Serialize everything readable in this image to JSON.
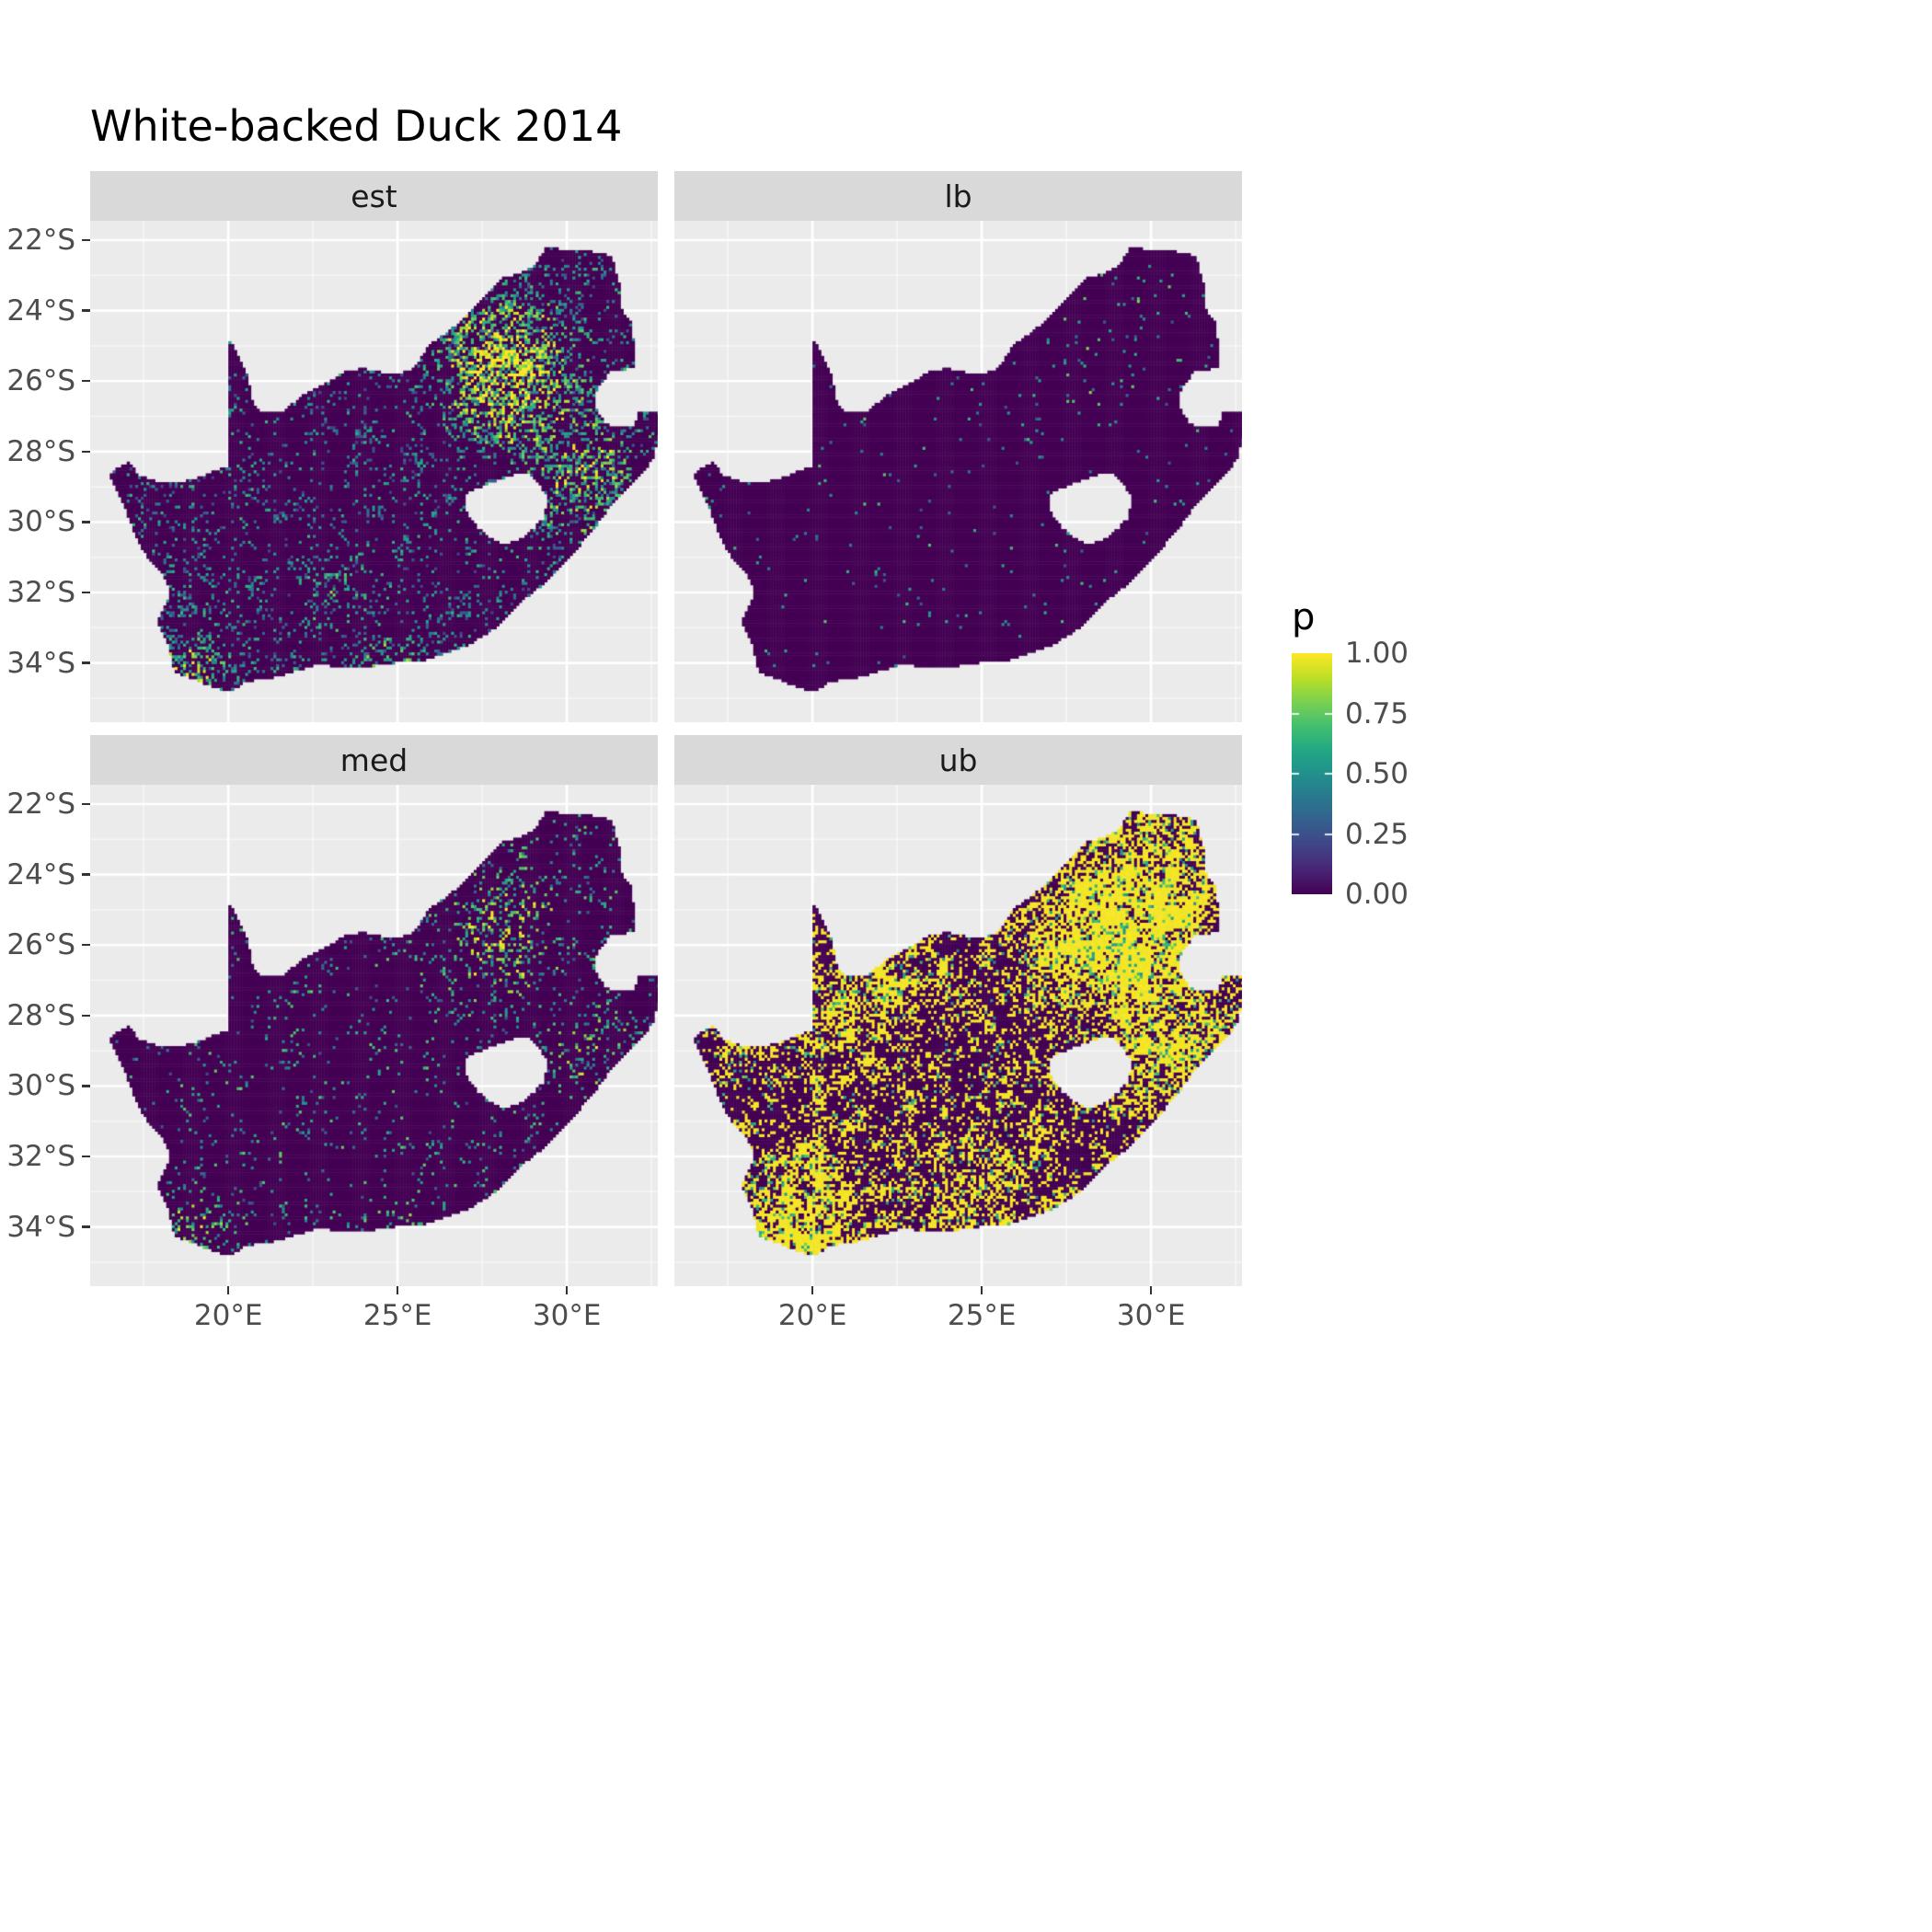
{
  "title": "White-backed Duck 2014",
  "legend": {
    "title": "p",
    "ticks": [
      {
        "label": "1.00",
        "value": 1.0
      },
      {
        "label": "0.75",
        "value": 0.75
      },
      {
        "label": "0.50",
        "value": 0.5
      },
      {
        "label": "0.25",
        "value": 0.25
      },
      {
        "label": "0.00",
        "value": 0.0
      }
    ]
  },
  "axes": {
    "x_ticks": [
      {
        "label": "20°E",
        "lon": 20
      },
      {
        "label": "25°E",
        "lon": 25
      },
      {
        "label": "30°E",
        "lon": 30
      }
    ],
    "y_ticks": [
      {
        "label": "22°S",
        "lat": -22
      },
      {
        "label": "24°S",
        "lat": -24
      },
      {
        "label": "26°S",
        "lat": -26
      },
      {
        "label": "28°S",
        "lat": -28
      },
      {
        "label": "30°S",
        "lat": -30
      },
      {
        "label": "32°S",
        "lat": -32
      },
      {
        "label": "34°S",
        "lat": -34
      }
    ]
  },
  "chart_data": {
    "type": "heatmap",
    "subtype": "faceted raster occupancy-probability maps of South Africa on a fine (pentad) grid",
    "title": "White-backed Duck 2014",
    "region": "South Africa (Lesotho shown as hole, Eswatini as coastal notch)",
    "scale": {
      "name": "p",
      "min": 0.0,
      "max": 1.0,
      "breaks": [
        0.0,
        0.25,
        0.5,
        0.75,
        1.0
      ]
    },
    "colormap": {
      "name": "viridis",
      "stops": [
        "#440154",
        "#482475",
        "#414487",
        "#355f8d",
        "#2a788e",
        "#21918c",
        "#22a884",
        "#44bf70",
        "#7ad151",
        "#bddf26",
        "#fde725"
      ]
    },
    "facets": [
      {
        "label": "est",
        "summary": "Estimate: mostly near 0 (dark purple) with widespread scattered low-mid cells; strong high-probability cluster around Gauteng (~26°S, 28°E), and smaller clusters near the southwest Cape coast, south coast and east coast.",
        "gen": {
          "seed": 11,
          "base": 0.03,
          "clumpAmp": 0.28,
          "clumpPow": 2,
          "hotOcc": 0.6,
          "valLo": 0.18,
          "valSpan": 0.5,
          "hotBoost": 0.95,
          "sprinkle": 0,
          "hotspots": [
            [
              28.0,
              -26.1,
              1.1,
              0.85
            ],
            [
              28.6,
              -24.6,
              1.0,
              0.4
            ],
            [
              30.3,
              -29.3,
              0.9,
              0.4
            ],
            [
              18.9,
              -34.2,
              0.8,
              0.6
            ],
            [
              24.9,
              -34.1,
              0.6,
              0.5
            ],
            [
              23.3,
              -32.3,
              0.8,
              0.22
            ],
            [
              29.9,
              -26.9,
              1.2,
              0.3
            ],
            [
              31.2,
              -28.3,
              0.8,
              0.3
            ],
            [
              26.8,
              -24.8,
              0.9,
              0.25
            ]
          ]
        }
      },
      {
        "label": "lb",
        "summary": "Lower bound: nearly all cells at 0; only a few isolated low/mid cells, mainly toward Gauteng and the northeast.",
        "gen": {
          "seed": 22,
          "base": 0.006,
          "clumpAmp": 0.025,
          "clumpPow": 2,
          "hotOcc": 0.12,
          "valLo": 0.25,
          "valSpan": 0.5,
          "hotBoost": 0.5,
          "sprinkle": 0,
          "hotspots": [
            [
              28.0,
              -26.1,
              0.9,
              0.5
            ],
            [
              29.8,
              -23.8,
              0.5,
              0.25
            ],
            [
              18.9,
              -34.3,
              0.4,
              0.25
            ],
            [
              30.3,
              -29.3,
              0.4,
              0.2
            ]
          ]
        }
      },
      {
        "label": "med",
        "summary": "Median: mostly 0 with moderate scattered cells; clusters around Gauteng (~26°S, 28°E) and near the southwest Cape and south coast.",
        "gen": {
          "seed": 33,
          "base": 0.018,
          "clumpAmp": 0.11,
          "clumpPow": 2,
          "hotOcc": 0.4,
          "valLo": 0.22,
          "valSpan": 0.55,
          "hotBoost": 0.85,
          "sprinkle": 0,
          "hotspots": [
            [
              28.0,
              -26.1,
              1.0,
              0.7
            ],
            [
              28.6,
              -24.6,
              0.8,
              0.28
            ],
            [
              30.3,
              -29.3,
              0.7,
              0.28
            ],
            [
              18.9,
              -34.2,
              0.7,
              0.5
            ],
            [
              24.9,
              -34.1,
              0.5,
              0.35
            ],
            [
              31.2,
              -28.3,
              0.6,
              0.22
            ]
          ]
        }
      },
      {
        "label": "ub",
        "summary": "Upper bound: extensive patches at/near 1 (yellow) across the northeast (Gauteng to Limpopo), KwaZulu-Natal coast, Northern Cape streaks and the southwest Cape; remainder near 0 with scattered teal/green cells.",
        "gen": {
          "seed": 44,
          "base": 0.045,
          "clumpAmp": 0.6,
          "clumpPow": 2.2,
          "hotOcc": 0.85,
          "valLo": 0.97,
          "valSpan": 0.03,
          "hotBoost": 0,
          "sprinkle": 0.14,
          "hotspots": [
            [
              28.3,
              -25.9,
              1.6,
              0.8
            ],
            [
              29.8,
              -23.2,
              1.4,
              0.5
            ],
            [
              30.9,
              -28.9,
              1.3,
              0.55
            ],
            [
              31.0,
              -25.5,
              1.0,
              0.45
            ],
            [
              19.0,
              -34.1,
              1.0,
              0.7
            ],
            [
              20.3,
              -33.2,
              1.2,
              0.4
            ],
            [
              24.5,
              -34.0,
              1.2,
              0.45
            ],
            [
              20.8,
              -28.4,
              1.5,
              0.3
            ],
            [
              25.5,
              -31.5,
              1.6,
              0.22
            ],
            [
              22.0,
              -26.8,
              1.2,
              0.25
            ]
          ]
        }
      }
    ],
    "map_outline": [
      [
        16.45,
        -28.63
      ],
      [
        17.05,
        -28.3
      ],
      [
        17.4,
        -28.7
      ],
      [
        18.0,
        -28.87
      ],
      [
        18.6,
        -28.85
      ],
      [
        19.2,
        -28.72
      ],
      [
        19.7,
        -28.5
      ],
      [
        19.99,
        -28.43
      ],
      [
        19.99,
        -24.76
      ],
      [
        20.35,
        -25.35
      ],
      [
        20.6,
        -25.95
      ],
      [
        20.7,
        -26.55
      ],
      [
        20.9,
        -26.85
      ],
      [
        21.6,
        -26.87
      ],
      [
        22.2,
        -26.4
      ],
      [
        22.9,
        -26.05
      ],
      [
        23.45,
        -25.72
      ],
      [
        24.0,
        -25.63
      ],
      [
        24.75,
        -25.8
      ],
      [
        25.35,
        -25.72
      ],
      [
        25.6,
        -25.45
      ],
      [
        25.95,
        -24.95
      ],
      [
        26.45,
        -24.62
      ],
      [
        26.9,
        -24.28
      ],
      [
        27.2,
        -23.95
      ],
      [
        27.6,
        -23.55
      ],
      [
        28.1,
        -23.05
      ],
      [
        28.6,
        -22.95
      ],
      [
        29.05,
        -22.73
      ],
      [
        29.4,
        -22.18
      ],
      [
        30.0,
        -22.28
      ],
      [
        30.6,
        -22.3
      ],
      [
        31.1,
        -22.4
      ],
      [
        31.3,
        -22.42
      ],
      [
        31.55,
        -23.2
      ],
      [
        31.55,
        -23.9
      ],
      [
        31.9,
        -24.3
      ],
      [
        31.97,
        -24.9
      ],
      [
        32.02,
        -25.62
      ],
      [
        31.3,
        -25.72
      ],
      [
        30.95,
        -26.1
      ],
      [
        30.8,
        -26.5
      ],
      [
        30.9,
        -26.85
      ],
      [
        31.15,
        -27.2
      ],
      [
        31.55,
        -27.32
      ],
      [
        31.97,
        -27.32
      ],
      [
        32.13,
        -26.86
      ],
      [
        32.89,
        -26.86
      ],
      [
        32.55,
        -28.2
      ],
      [
        32.05,
        -28.8
      ],
      [
        31.4,
        -29.4
      ],
      [
        31.05,
        -29.87
      ],
      [
        30.3,
        -30.75
      ],
      [
        29.45,
        -31.65
      ],
      [
        28.6,
        -32.3
      ],
      [
        27.9,
        -33.0
      ],
      [
        27.05,
        -33.52
      ],
      [
        26.4,
        -33.72
      ],
      [
        25.65,
        -33.98
      ],
      [
        25.0,
        -33.98
      ],
      [
        24.2,
        -34.1
      ],
      [
        23.4,
        -34.1
      ],
      [
        22.55,
        -34.05
      ],
      [
        22.1,
        -34.2
      ],
      [
        21.3,
        -34.42
      ],
      [
        20.55,
        -34.52
      ],
      [
        20.0,
        -34.82
      ],
      [
        19.4,
        -34.62
      ],
      [
        18.85,
        -34.4
      ],
      [
        18.45,
        -34.3
      ],
      [
        18.33,
        -34.0
      ],
      [
        18.25,
        -33.5
      ],
      [
        17.9,
        -32.8
      ],
      [
        18.3,
        -32.05
      ],
      [
        18.1,
        -31.55
      ],
      [
        17.6,
        -31.0
      ],
      [
        17.25,
        -30.4
      ],
      [
        16.95,
        -29.6
      ],
      [
        16.7,
        -29.1
      ]
    ],
    "lesotho_hole": [
      [
        27.0,
        -29.2
      ],
      [
        27.7,
        -28.9
      ],
      [
        28.3,
        -28.68
      ],
      [
        28.85,
        -28.6
      ],
      [
        29.15,
        -28.9
      ],
      [
        29.45,
        -29.3
      ],
      [
        29.3,
        -29.9
      ],
      [
        28.8,
        -30.4
      ],
      [
        28.1,
        -30.65
      ],
      [
        27.75,
        -30.45
      ],
      [
        27.35,
        -30.15
      ],
      [
        27.02,
        -29.7
      ]
    ]
  },
  "colors": {
    "panel_background": "#EBEBEB",
    "strip_background": "#D9D9D9",
    "gridline_major": "#FFFFFF",
    "axis_text": "#4D4D4D",
    "tick_mark": "#333333",
    "title_text": "#000000"
  }
}
